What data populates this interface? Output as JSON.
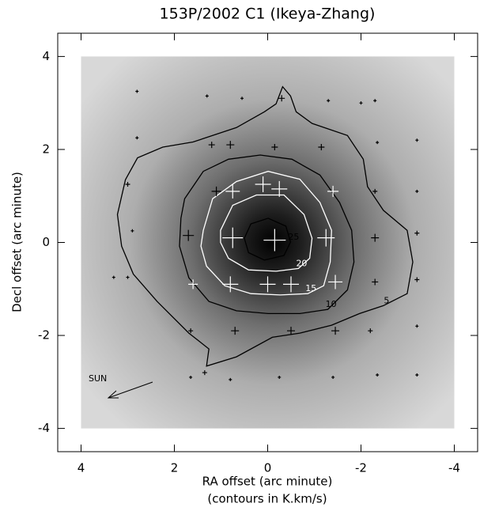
{
  "chart_data": {
    "type": "contour",
    "title": "153P/2002 C1 (Ikeya-Zhang)",
    "xlabel": "RA offset (arc minute)",
    "xlabel_note": "(contours in K.km/s)",
    "ylabel": "Decl offset (arc minute)",
    "annotation": "SUN",
    "xlim": [
      4.5,
      -4.5
    ],
    "ylim": [
      -4.5,
      4.5
    ],
    "xticks": [
      4,
      2,
      0,
      -2,
      -4
    ],
    "yticks": [
      -4,
      -2,
      0,
      2,
      4
    ],
    "contours": [
      {
        "level": 5,
        "color": "#000000",
        "x": [
          3.05,
          2.79,
          2.25,
          1.6,
          0.67,
          0.07,
          -0.18,
          -0.32,
          -0.49,
          -0.61,
          -0.95,
          -1.71,
          -2.05,
          -2.14,
          -2.48,
          -2.99,
          -3.11,
          -2.99,
          -2.48,
          -1.97,
          -1.37,
          -0.69,
          -0.1,
          0.67,
          1.31,
          1.26,
          1.69,
          2.37,
          2.88,
          3.13,
          3.22
        ],
        "y": [
          1.35,
          1.82,
          2.05,
          2.16,
          2.47,
          2.81,
          2.98,
          3.35,
          3.15,
          2.81,
          2.56,
          2.3,
          1.79,
          1.2,
          0.69,
          0.26,
          -0.42,
          -1.1,
          -1.36,
          -1.53,
          -1.78,
          -1.95,
          -2.04,
          -2.46,
          -2.66,
          -2.29,
          -1.95,
          -1.27,
          -0.68,
          -0.08,
          0.6
        ]
      },
      {
        "level": 10,
        "color": "#000000",
        "x": [
          1.78,
          1.38,
          0.84,
          0.16,
          -0.52,
          -1.12,
          -1.54,
          -1.8,
          -1.85,
          -1.71,
          -1.29,
          -0.69,
          -0.01,
          0.67,
          1.26,
          1.69,
          1.89,
          1.86
        ],
        "y": [
          0.94,
          1.53,
          1.79,
          1.88,
          1.79,
          1.45,
          0.86,
          0.26,
          -0.42,
          -1.02,
          -1.44,
          -1.53,
          -1.53,
          -1.47,
          -1.27,
          -0.76,
          -0.08,
          0.52
        ]
      },
      {
        "level": 15,
        "color": "#ffffff",
        "x": [
          1.38,
          1.18,
          0.67,
          -0.01,
          -0.69,
          -1.12,
          -1.37,
          -1.34,
          -1.2,
          -0.86,
          -0.27,
          0.36,
          0.92,
          1.31,
          1.43
        ],
        "y": [
          0.26,
          0.94,
          1.31,
          1.53,
          1.36,
          0.86,
          0.26,
          -0.42,
          -0.93,
          -1.1,
          -1.13,
          -1.1,
          -0.93,
          -0.51,
          -0.08
        ]
      },
      {
        "level": 20,
        "color": "#ffffff",
        "x": [
          1.01,
          0.75,
          0.24,
          -0.35,
          -0.78,
          -0.95,
          -0.9,
          -0.66,
          -0.18,
          0.41,
          0.84,
          1.01
        ],
        "y": [
          0.26,
          0.8,
          1.02,
          1.02,
          0.6,
          0.09,
          -0.34,
          -0.56,
          -0.62,
          -0.59,
          -0.34,
          0.0
        ]
      },
      {
        "level": 25,
        "color": "#000000",
        "x": [
          0.5,
          0.36,
          -0.01,
          -0.39,
          -0.49,
          -0.35,
          0.07,
          0.41
        ],
        "y": [
          0.09,
          0.4,
          0.52,
          0.35,
          0.01,
          -0.28,
          -0.38,
          -0.22
        ]
      }
    ],
    "points": {
      "x": [
        2.8,
        1.3,
        0.55,
        -0.3,
        -1.3,
        -2.0,
        -2.3,
        2.8,
        1.2,
        0.8,
        -0.15,
        -1.15,
        -2.35,
        -3.2,
        3.0,
        1.1,
        0.75,
        0.1,
        -0.25,
        -1.4,
        -2.3,
        -3.2,
        2.9,
        1.7,
        0.75,
        -0.15,
        -1.25,
        -2.3,
        -3.2,
        3.3,
        3.0,
        1.6,
        0.8,
        0.0,
        -0.5,
        -1.45,
        -2.3,
        -3.2,
        1.65,
        0.7,
        -0.5,
        -1.45,
        -2.2,
        -3.2,
        1.65,
        1.35,
        0.8,
        -0.25,
        -1.4,
        -2.35,
        -3.2
      ],
      "y": [
        3.25,
        3.15,
        3.1,
        3.1,
        3.05,
        3.0,
        3.05,
        2.25,
        2.1,
        2.1,
        2.05,
        2.05,
        2.15,
        2.2,
        1.25,
        1.1,
        1.1,
        1.25,
        1.15,
        1.1,
        1.1,
        1.1,
        0.25,
        0.15,
        0.1,
        0.05,
        0.1,
        0.1,
        0.2,
        -0.75,
        -0.75,
        -0.9,
        -0.9,
        -0.9,
        -0.9,
        -0.85,
        -0.85,
        -0.8,
        -1.9,
        -1.9,
        -1.9,
        -1.9,
        -1.9,
        -1.8,
        -2.9,
        -2.8,
        -2.95,
        -2.9,
        -2.9,
        -2.85,
        -2.85
      ],
      "sizes": [
        2,
        2,
        2,
        4,
        2,
        2,
        2,
        2,
        4,
        5,
        4,
        4,
        2,
        2,
        3,
        6,
        9,
        10,
        10,
        7,
        3,
        2,
        2,
        7,
        13,
        14,
        11,
        5,
        3,
        2,
        2,
        6,
        10,
        10,
        10,
        9,
        4,
        3,
        3,
        5,
        5,
        5,
        3,
        2,
        2,
        3,
        2,
        2,
        2,
        2,
        2
      ],
      "colors": [
        "#000000",
        "#000000",
        "#000000",
        "#000000",
        "#000000",
        "#000000",
        "#000000",
        "#000000",
        "#000000",
        "#000000",
        "#000000",
        "#000000",
        "#000000",
        "#000000",
        "#000000",
        "#000000",
        "#ffffff",
        "#ffffff",
        "#ffffff",
        "#ffffff",
        "#000000",
        "#000000",
        "#000000",
        "#000000",
        "#ffffff",
        "#ffffff",
        "#ffffff",
        "#000000",
        "#000000",
        "#000000",
        "#000000",
        "#ffffff",
        "#ffffff",
        "#ffffff",
        "#ffffff",
        "#ffffff",
        "#000000",
        "#000000",
        "#000000",
        "#000000",
        "#000000",
        "#000000",
        "#000000",
        "#000000",
        "#000000",
        "#000000",
        "#000000",
        "#000000",
        "#000000",
        "#000000",
        "#000000"
      ]
    }
  }
}
